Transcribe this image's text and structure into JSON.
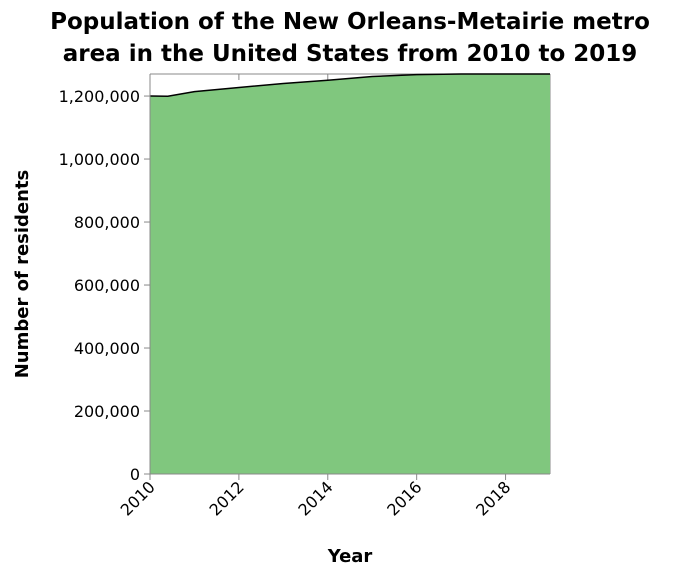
{
  "chart_data": {
    "type": "area",
    "title": "Population of the New Orleans-Metairie metro area in the United States from 2010 to 2019",
    "title_lines": [
      "Population of the New Orleans-Metairie metro",
      "area in the United States from 2010 to 2019"
    ],
    "xlabel": "Year",
    "ylabel": "Number of residents",
    "x": [
      2010,
      2010.4,
      2011,
      2012,
      2013,
      2014,
      2015,
      2016,
      2017,
      2018,
      2019
    ],
    "values": [
      1200000,
      1199500,
      1214000,
      1227000,
      1240000,
      1250000,
      1262000,
      1268000,
      1270000,
      1270000,
      1270000
    ],
    "xlim": [
      2010,
      2019
    ],
    "ylim": [
      0,
      1270000
    ],
    "x_ticks": [
      2010,
      2012,
      2014,
      2016,
      2018
    ],
    "x_tick_labels": [
      "2010",
      "2012",
      "2014",
      "2016",
      "2018"
    ],
    "y_ticks": [
      0,
      200000,
      400000,
      600000,
      800000,
      1000000,
      1200000
    ],
    "y_tick_labels": [
      "0",
      "200,000",
      "400,000",
      "600,000",
      "800,000",
      "1,000,000",
      "1,200,000"
    ],
    "grid": false,
    "legend": "none",
    "colors": {
      "fill": "#80c77e",
      "line": "#000000",
      "axis": "#888888",
      "tick": "#888888"
    }
  }
}
